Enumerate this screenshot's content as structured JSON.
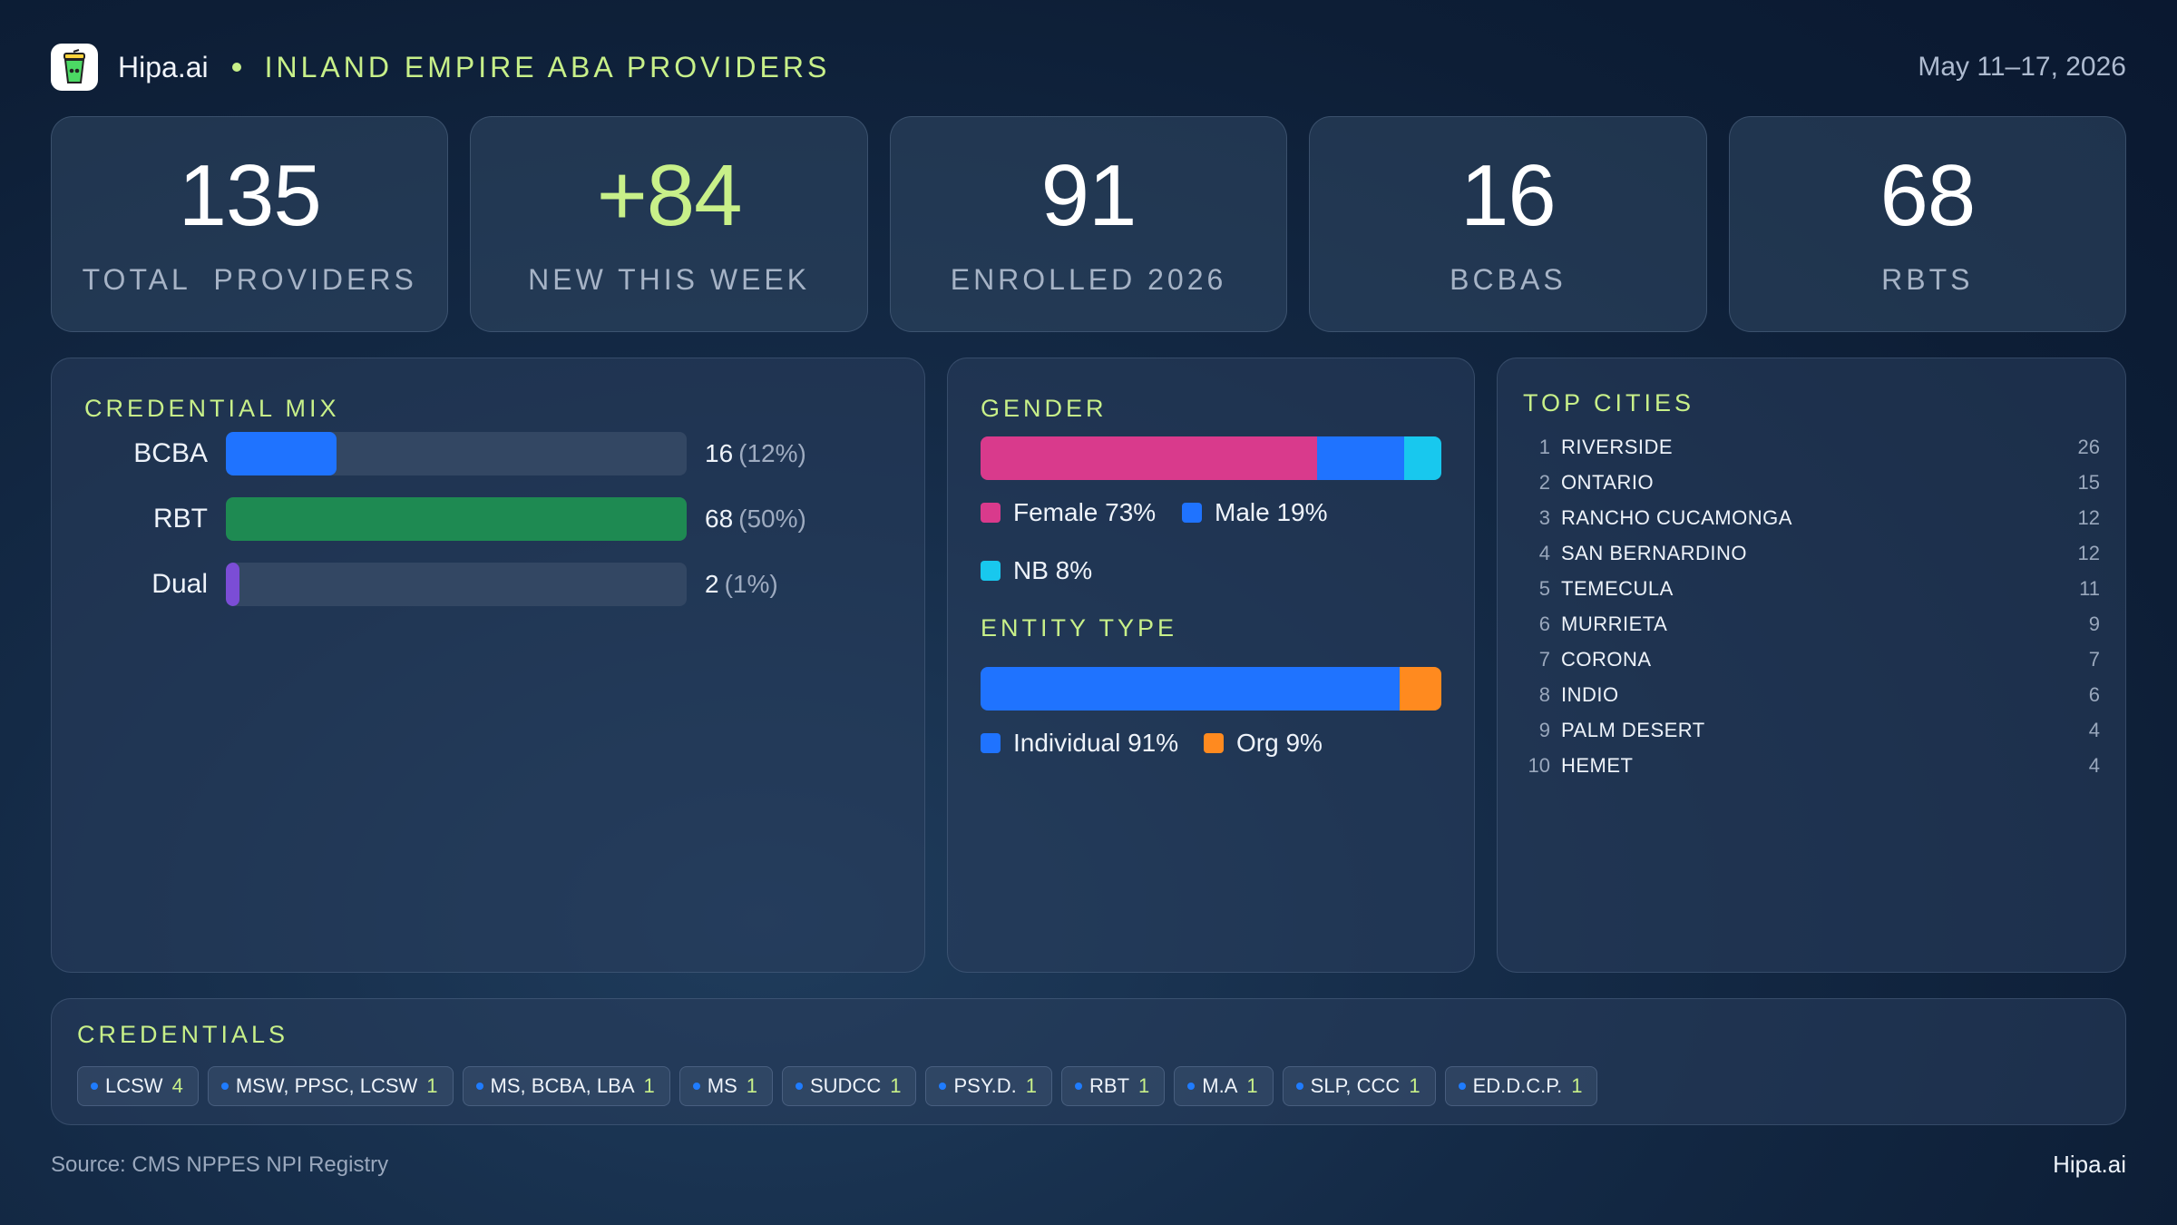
{
  "header": {
    "brand": "Hipa.ai",
    "title": "INLAND EMPIRE ABA PROVIDERS",
    "date_range": "May 11–17, 2026"
  },
  "kpis": [
    {
      "value": "135",
      "label": "TOTAL  PROVIDERS"
    },
    {
      "value": "+84",
      "label": "NEW THIS WEEK"
    },
    {
      "value": "91",
      "label": "ENROLLED 2026"
    },
    {
      "value": "16",
      "label": "BCBAS"
    },
    {
      "value": "68",
      "label": "RBTS"
    }
  ],
  "credential_mix": {
    "title": "CREDENTIAL MIX",
    "rows": [
      {
        "label": "BCBA",
        "count": "16",
        "pct": "(12%)",
        "fraction": 0.24,
        "color": "#1f73ff"
      },
      {
        "label": "RBT",
        "count": "68",
        "pct": "(50%)",
        "fraction": 1.0,
        "color": "#1e8a52"
      },
      {
        "label": "Dual",
        "count": "2",
        "pct": "(1%)",
        "fraction": 0.03,
        "color": "#7b4dd6"
      }
    ]
  },
  "gender": {
    "title": "GENDER",
    "segments": [
      {
        "label": "Female 73%",
        "percent": 73,
        "color": "#d93a8c"
      },
      {
        "label": "Male 19%",
        "percent": 19,
        "color": "#1f73ff"
      },
      {
        "label": "NB 8%",
        "percent": 8,
        "color": "#18c8ee"
      }
    ]
  },
  "entity_type": {
    "title": "ENTITY TYPE",
    "segments": [
      {
        "label": "Individual 91%",
        "percent": 91,
        "color": "#1f73ff"
      },
      {
        "label": "Org 9%",
        "percent": 9,
        "color": "#ff8a1f"
      }
    ]
  },
  "top_cities": {
    "title": "TOP CITIES",
    "items": [
      {
        "rank": "1",
        "name": "RIVERSIDE",
        "count": "26"
      },
      {
        "rank": "2",
        "name": "ONTARIO",
        "count": "15"
      },
      {
        "rank": "3",
        "name": "RANCHO CUCAMONGA",
        "count": "12"
      },
      {
        "rank": "4",
        "name": "SAN BERNARDINO",
        "count": "12"
      },
      {
        "rank": "5",
        "name": "TEMECULA",
        "count": "11"
      },
      {
        "rank": "6",
        "name": "MURRIETA",
        "count": "9"
      },
      {
        "rank": "7",
        "name": "CORONA",
        "count": "7"
      },
      {
        "rank": "8",
        "name": "INDIO",
        "count": "6"
      },
      {
        "rank": "9",
        "name": "PALM DESERT",
        "count": "4"
      },
      {
        "rank": "10",
        "name": "HEMET",
        "count": "4"
      }
    ]
  },
  "credentials": {
    "title": "CREDENTIALS",
    "chips": [
      {
        "label": "LCSW",
        "count": "4"
      },
      {
        "label": "MSW, PPSC, LCSW",
        "count": "1"
      },
      {
        "label": "MS, BCBA, LBA",
        "count": "1"
      },
      {
        "label": "MS",
        "count": "1"
      },
      {
        "label": "SUDCC",
        "count": "1"
      },
      {
        "label": "PSY.D.",
        "count": "1"
      },
      {
        "label": "RBT",
        "count": "1"
      },
      {
        "label": "M.A",
        "count": "1"
      },
      {
        "label": "SLP, CCC",
        "count": "1"
      },
      {
        "label": "ED.D.C.P.",
        "count": "1"
      }
    ]
  },
  "footer": {
    "source": "Source: CMS NPPES NPI Registry",
    "brand": "Hipa.ai"
  },
  "logo_icon": "cup-icon"
}
